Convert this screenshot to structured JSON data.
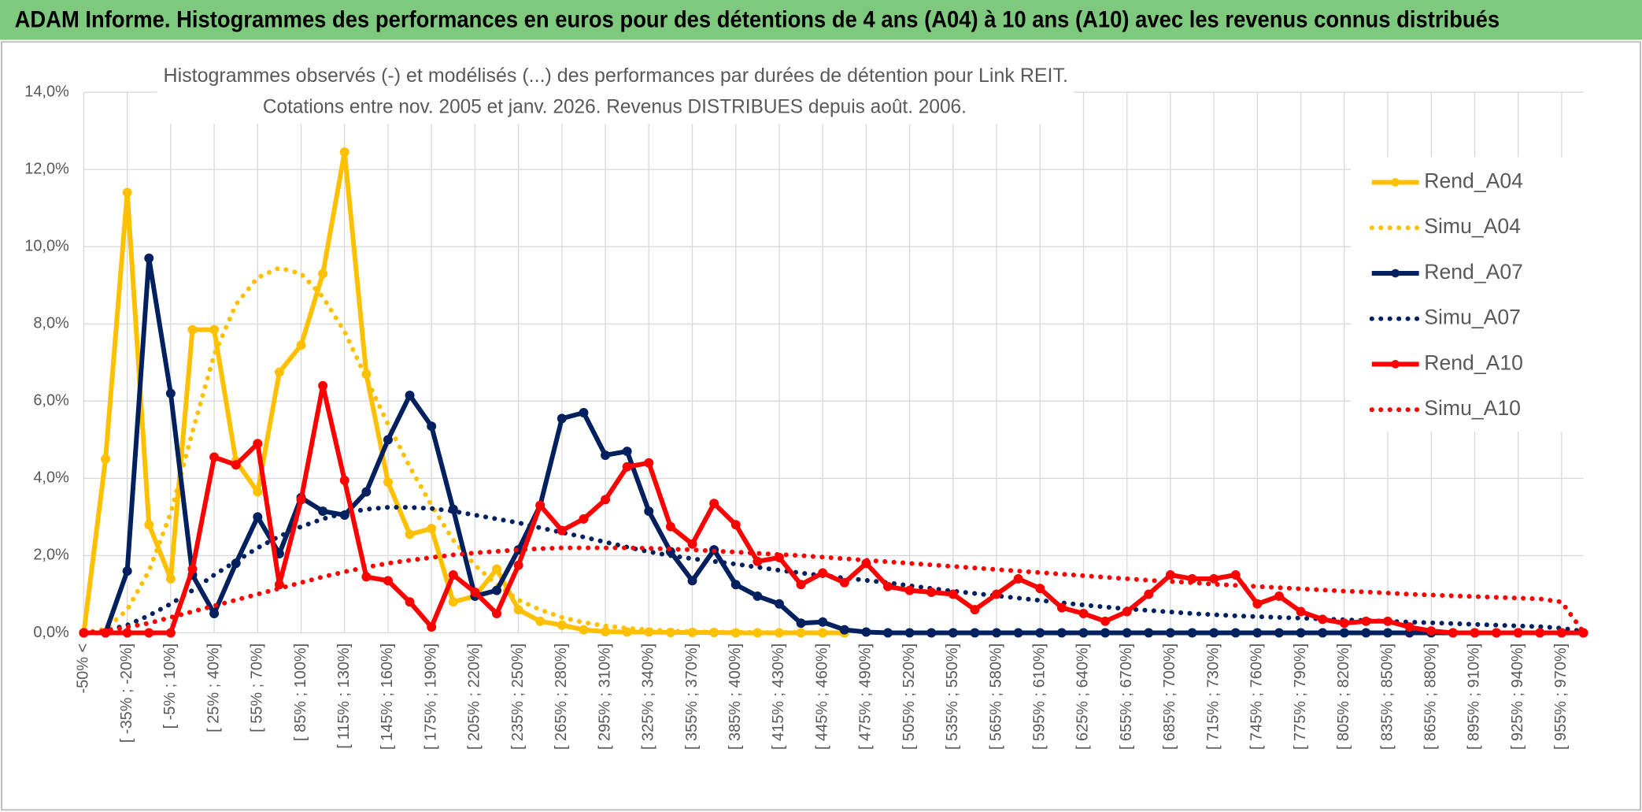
{
  "header": {
    "title": "ADAM Informe. Histogrammes des performances en euros pour des détentions de 4 ans (A04) à 10 ans (A10) avec les revenus connus distribués"
  },
  "chart_data": {
    "type": "line",
    "title": "Histogrammes observés (-) et modélisés (...) des performances par durées de détention pour Link REIT.",
    "subtitle": "Cotations entre nov. 2005 et janv. 2026. Revenus DISTRIBUES depuis août. 2006.",
    "categories": [
      "-50% <",
      null,
      "[ -35% ; -20%]",
      null,
      "[ -5% ; 10%]",
      null,
      "[ 25% ; 40%]",
      null,
      "[ 55% ; 70%]",
      null,
      "[ 85% ; 100%]",
      null,
      "[ 115% ; 130%]",
      null,
      "[ 145% ; 160%]",
      null,
      "[ 175% ; 190%]",
      null,
      "[ 205% ; 220%]",
      null,
      "[ 235% ; 250%]",
      null,
      "[ 265% ; 280%]",
      null,
      "[ 295% ; 310%]",
      null,
      "[ 325% ; 340%]",
      null,
      "[ 355% ; 370%]",
      null,
      "[ 385% ; 400%]",
      null,
      "[ 415% ; 430%]",
      null,
      "[ 445% ; 460%]",
      null,
      "[ 475% ; 490%]",
      null,
      "[ 505% ; 520%]",
      null,
      "[ 535% ; 550%]",
      null,
      "[ 565% ; 580%]",
      null,
      "[ 595% ; 610%]",
      null,
      "[ 625% ; 640%]",
      null,
      "[ 655% ; 670%]",
      null,
      "[ 685% ; 700%]",
      null,
      "[ 715% ; 730%]",
      null,
      "[ 745% ; 760%]",
      null,
      "[ 775% ; 790%]",
      null,
      "[ 805% ; 820%]",
      null,
      "[ 835% ; 850%]",
      null,
      "[ 865% ; 880%]",
      null,
      "[ 895% ; 910%]",
      null,
      "[ 925% ; 940%]",
      null,
      "[ 955% ; 970%]",
      null
    ],
    "ylim": [
      0,
      14
    ],
    "yticks": [
      {
        "value": 0,
        "label": "0,0%"
      },
      {
        "value": 2,
        "label": "2,0%"
      },
      {
        "value": 4,
        "label": "4,0%"
      },
      {
        "value": 6,
        "label": "6,0%"
      },
      {
        "value": 8,
        "label": "8,0%"
      },
      {
        "value": 10,
        "label": "10,0%"
      },
      {
        "value": 12,
        "label": "12,0%"
      },
      {
        "value": 14,
        "label": "14,0%"
      }
    ],
    "grid": true,
    "legend": "right",
    "series": [
      {
        "name": "Rend_A04",
        "color": "#FFC000",
        "line_style": "solid",
        "markers": true,
        "values": [
          0,
          4.5,
          11.4,
          2.8,
          1.4,
          7.85,
          7.85,
          4.45,
          3.65,
          6.75,
          7.45,
          9.3,
          12.45,
          6.7,
          3.9,
          2.55,
          2.7,
          0.8,
          0.95,
          1.65,
          0.6,
          0.3,
          0.2,
          0.08,
          0.03,
          0.02,
          0.02,
          0.01,
          0.01,
          0.01,
          0,
          0,
          0,
          0,
          0,
          0,
          null,
          null,
          null,
          null,
          null,
          null,
          null,
          null,
          null,
          null,
          null,
          null,
          null,
          null,
          null,
          null,
          null,
          null,
          null,
          null,
          null,
          null,
          null,
          null,
          null,
          null,
          null,
          null,
          null,
          null,
          null,
          null,
          null,
          null
        ]
      },
      {
        "name": "Simu_A04",
        "color": "#FFC000",
        "line_style": "dotted",
        "markers": false,
        "values": [
          0,
          0.1,
          0.6,
          1.6,
          3.1,
          5.2,
          7.2,
          8.5,
          9.2,
          9.45,
          9.3,
          8.7,
          7.8,
          6.6,
          5.4,
          4.3,
          3.3,
          2.4,
          1.75,
          1.25,
          0.85,
          0.6,
          0.4,
          0.27,
          0.18,
          0.12,
          0.08,
          0.05,
          0.03,
          0.02,
          0.02,
          0.01,
          0.01,
          0.01,
          0,
          0,
          null,
          null,
          null,
          null,
          null,
          null,
          null,
          null,
          null,
          null,
          null,
          null,
          null,
          null,
          null,
          null,
          null,
          null,
          null,
          null,
          null,
          null,
          null,
          null,
          null,
          null,
          null,
          null,
          null,
          null,
          null,
          null,
          null,
          null
        ]
      },
      {
        "name": "Rend_A07",
        "color": "#002060",
        "line_style": "solid",
        "markers": true,
        "values": [
          0,
          0,
          1.6,
          9.7,
          6.2,
          1.5,
          0.5,
          1.8,
          3.0,
          2.05,
          3.5,
          3.15,
          3.05,
          3.65,
          5.0,
          6.15,
          5.35,
          3.2,
          0.95,
          1.1,
          2.15,
          3.3,
          5.55,
          5.7,
          4.6,
          4.7,
          3.15,
          2.1,
          1.35,
          2.15,
          1.25,
          0.95,
          0.75,
          0.25,
          0.28,
          0.08,
          0.02,
          0,
          0,
          0,
          0,
          0,
          0,
          0,
          0,
          0,
          0,
          0,
          0,
          0,
          0,
          0,
          0,
          0,
          0,
          0,
          0,
          0,
          0,
          0,
          0,
          0,
          0,
          0,
          0,
          0,
          0,
          0,
          0,
          0
        ]
      },
      {
        "name": "Simu_A07",
        "color": "#002060",
        "line_style": "dotted",
        "markers": false,
        "values": [
          0,
          0.05,
          0.2,
          0.45,
          0.75,
          1.1,
          1.5,
          1.85,
          2.2,
          2.5,
          2.75,
          2.95,
          3.1,
          3.2,
          3.25,
          3.25,
          3.22,
          3.15,
          3.05,
          2.95,
          2.85,
          2.72,
          2.6,
          2.48,
          2.35,
          2.22,
          2.1,
          2.0,
          1.92,
          1.85,
          1.78,
          1.7,
          1.62,
          1.55,
          1.48,
          1.42,
          1.36,
          1.3,
          1.22,
          1.15,
          1.08,
          1.02,
          0.96,
          0.9,
          0.84,
          0.78,
          0.72,
          0.67,
          0.62,
          0.58,
          0.54,
          0.5,
          0.47,
          0.44,
          0.42,
          0.4,
          0.38,
          0.36,
          0.34,
          0.32,
          0.3,
          0.28,
          0.26,
          0.24,
          0.22,
          0.2,
          0.18,
          0.16,
          0.12,
          0.04
        ]
      },
      {
        "name": "Rend_A10",
        "color": "#FF0000",
        "line_style": "solid",
        "markers": true,
        "values": [
          0,
          0,
          0,
          0,
          0,
          1.65,
          4.55,
          4.35,
          4.9,
          1.25,
          3.45,
          6.4,
          3.95,
          1.45,
          1.35,
          0.8,
          0.15,
          1.5,
          1.05,
          0.5,
          1.75,
          3.3,
          2.65,
          2.95,
          3.45,
          4.3,
          4.4,
          2.75,
          2.3,
          3.35,
          2.8,
          1.85,
          1.95,
          1.25,
          1.55,
          1.3,
          1.8,
          1.2,
          1.1,
          1.05,
          1.0,
          0.6,
          1.0,
          1.4,
          1.15,
          0.65,
          0.5,
          0.3,
          0.55,
          1.0,
          1.5,
          1.4,
          1.4,
          1.5,
          0.75,
          0.95,
          0.55,
          0.35,
          0.25,
          0.3,
          0.3,
          0.15,
          0.05,
          0,
          0,
          0,
          0,
          0,
          0,
          0
        ]
      },
      {
        "name": "Simu_A10",
        "color": "#FF0000",
        "line_style": "dotted",
        "markers": false,
        "values": [
          0,
          0.05,
          0.15,
          0.25,
          0.4,
          0.55,
          0.7,
          0.85,
          1.0,
          1.15,
          1.3,
          1.45,
          1.58,
          1.7,
          1.8,
          1.88,
          1.95,
          2.02,
          2.07,
          2.11,
          2.15,
          2.18,
          2.2,
          2.2,
          2.2,
          2.2,
          2.19,
          2.17,
          2.15,
          2.12,
          2.09,
          2.06,
          2.03,
          2.0,
          1.96,
          1.92,
          1.88,
          1.84,
          1.8,
          1.76,
          1.72,
          1.68,
          1.64,
          1.6,
          1.56,
          1.52,
          1.48,
          1.44,
          1.4,
          1.36,
          1.33,
          1.3,
          1.26,
          1.23,
          1.2,
          1.17,
          1.14,
          1.11,
          1.08,
          1.06,
          1.03,
          1.0,
          0.98,
          0.96,
          0.94,
          0.92,
          0.9,
          0.88,
          0.8,
          0.02
        ]
      }
    ]
  }
}
